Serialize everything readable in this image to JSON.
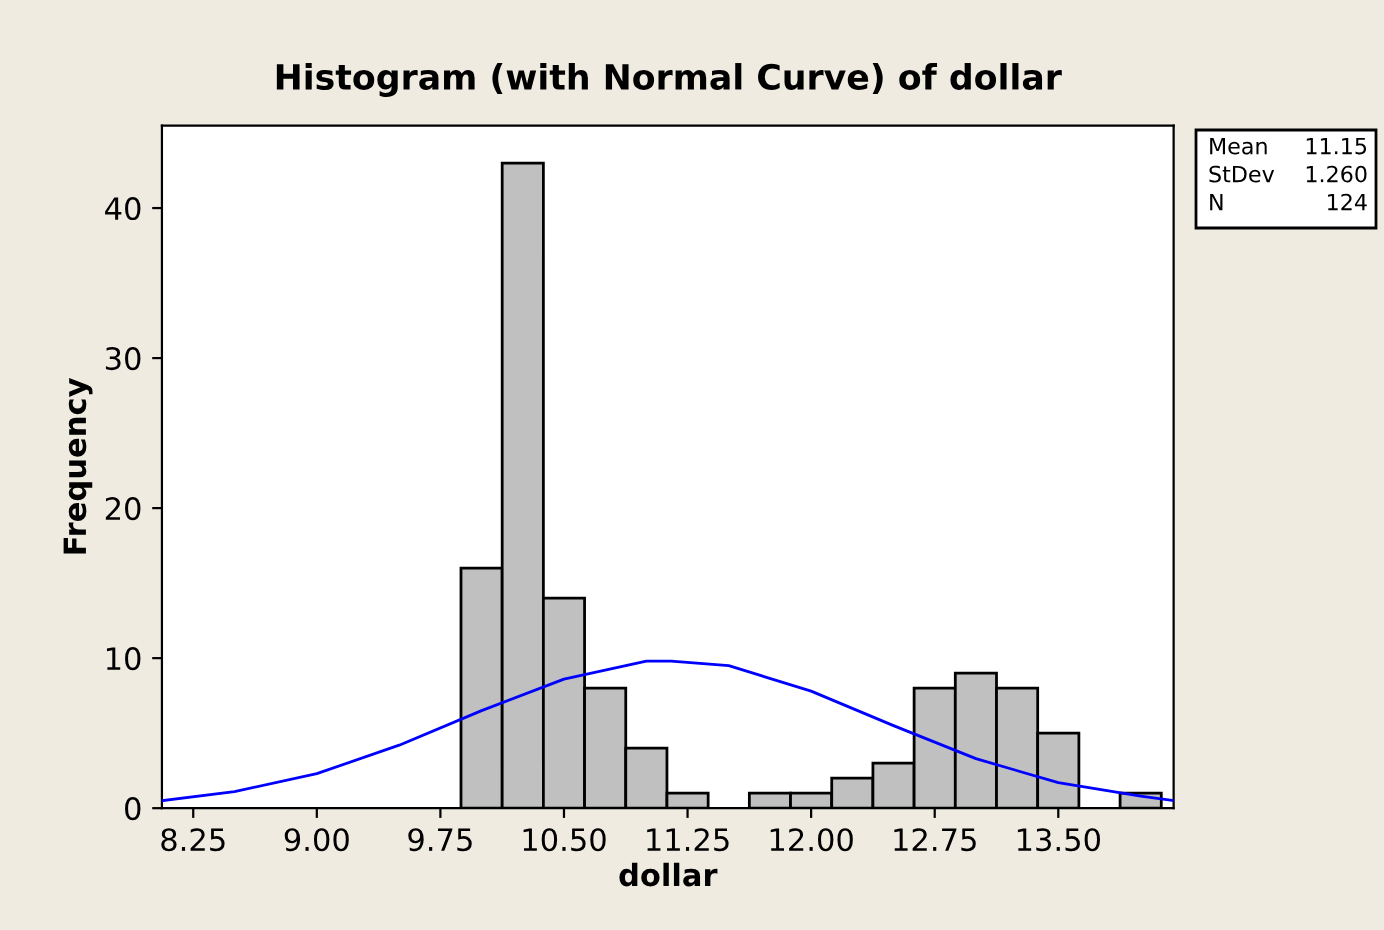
{
  "chart_data": {
    "type": "histogram",
    "title": "Histogram (with Normal Curve) of dollar",
    "xlabel": "dollar",
    "ylabel": "Frequency",
    "xlim": [
      8.06,
      14.2
    ],
    "xticks": [
      {
        "value": 8.25,
        "label": "8.25"
      },
      {
        "value": 9.0,
        "label": "9.00"
      },
      {
        "value": 9.75,
        "label": "9.75"
      },
      {
        "value": 10.5,
        "label": "10.50"
      },
      {
        "value": 11.25,
        "label": "11.25"
      },
      {
        "value": 12.0,
        "label": "12.00"
      },
      {
        "value": 12.75,
        "label": "12.75"
      },
      {
        "value": 13.5,
        "label": "13.50"
      }
    ],
    "ylim": [
      0,
      45.5
    ],
    "yticks": [
      0,
      10,
      20,
      30,
      40
    ],
    "grid": false,
    "legend": false,
    "series": [
      {
        "color": "#c0c0c0",
        "bins": [
          9.875,
          10.125,
          10.375,
          10.625,
          10.875,
          11.125,
          11.375,
          11.625,
          11.875,
          12.125,
          12.375,
          12.625,
          12.875,
          13.125,
          13.375,
          13.625,
          13.875,
          14.125
        ],
        "values": [
          16,
          43,
          14,
          8,
          4,
          1,
          0,
          1,
          1,
          2,
          3,
          8,
          9,
          8,
          5,
          0,
          1
        ]
      },
      {
        "type": "line",
        "color": "#0000ff",
        "x": [
          8.06,
          8.5,
          9.0,
          9.5,
          10.0,
          10.5,
          11.0,
          11.15,
          11.5,
          12.0,
          12.5,
          13.0,
          13.5,
          14.0,
          14.2
        ],
        "values": [
          0.5,
          1.1,
          2.3,
          4.2,
          6.5,
          8.6,
          9.8,
          9.8,
          9.5,
          7.8,
          5.5,
          3.3,
          1.7,
          0.8,
          0.5
        ]
      }
    ],
    "annotations": [
      [
        "Mean",
        "11.15"
      ],
      [
        "StDev",
        "1.260"
      ],
      [
        "N",
        "124"
      ]
    ]
  }
}
